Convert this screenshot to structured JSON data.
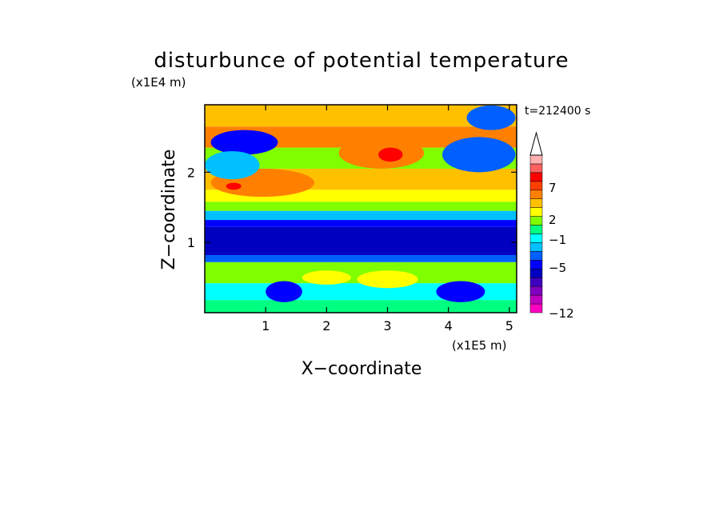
{
  "chart_data": {
    "type": "heatmap",
    "title": "disturbunce of potential temperature",
    "xlabel": "X−coordinate",
    "ylabel": "Z−coordinate",
    "x_scale_label": "(x1E5 m)",
    "y_scale_label": "(x1E4 m)",
    "time_label": "t=212400 s",
    "xlim": [
      0,
      5.12
    ],
    "ylim": [
      0,
      2.96
    ],
    "x_ticks": [
      "1",
      "2",
      "3",
      "4",
      "5"
    ],
    "y_ticks": [
      "1",
      "2"
    ],
    "grid": false,
    "legend": {
      "placement": "right",
      "labels": [
        "7",
        "2",
        "−1",
        "−5",
        "−12"
      ],
      "colors_bottom_to_top": [
        "#ff00c0",
        "#c000c0",
        "#8000c0",
        "#4000c0",
        "#0000c0",
        "#0000ff",
        "#0060ff",
        "#00c0ff",
        "#00ffff",
        "#00ff80",
        "#80ff00",
        "#ffff00",
        "#ffc000",
        "#ff8000",
        "#ff4000",
        "#ff0000",
        "#ff6060",
        "#ffb0b0"
      ]
    },
    "bands": [
      {
        "z": [
          0.0,
          0.18
        ],
        "value": -0.5,
        "color": "#00ff80"
      },
      {
        "z": [
          0.18,
          0.42
        ],
        "value": -0.8,
        "color": "#00ffff"
      },
      {
        "z": [
          0.42,
          0.72
        ],
        "value": 0.3,
        "color": "#80ff00"
      },
      {
        "z": [
          0.72,
          0.82
        ],
        "value": -2.5,
        "color": "#0060ff"
      },
      {
        "z": [
          0.82,
          1.22
        ],
        "value": -6.0,
        "color": "#0000c0"
      },
      {
        "z": [
          1.22,
          1.32
        ],
        "value": -3.5,
        "color": "#0000ff"
      },
      {
        "z": [
          1.32,
          1.45
        ],
        "value": -1.5,
        "color": "#00c0ff"
      },
      {
        "z": [
          1.45,
          1.58
        ],
        "value": 0.3,
        "color": "#80ff00"
      },
      {
        "z": [
          1.58,
          1.75
        ],
        "value": 1.5,
        "color": "#ffff00"
      },
      {
        "z": [
          1.75,
          2.05
        ],
        "value": 3.0,
        "color": "#ffc000"
      },
      {
        "z": [
          2.05,
          2.35
        ],
        "value": 1.0,
        "color": "#80ff00"
      },
      {
        "z": [
          2.35,
          2.65
        ],
        "value": 4.0,
        "color": "#ff8000"
      },
      {
        "z": [
          2.65,
          2.96
        ],
        "value": 2.5,
        "color": "#ffc000"
      }
    ],
    "features": [
      {
        "x": [
          0.1,
          1.8
        ],
        "z": [
          1.65,
          2.05
        ],
        "value": 4.0,
        "color": "#ff8000"
      },
      {
        "x": [
          0.35,
          0.6
        ],
        "z": [
          1.75,
          1.85
        ],
        "value": 7.0,
        "color": "#ff0000"
      },
      {
        "x": [
          2.2,
          3.6
        ],
        "z": [
          2.05,
          2.5
        ],
        "value": 4.5,
        "color": "#ff8000"
      },
      {
        "x": [
          2.85,
          3.25
        ],
        "z": [
          2.15,
          2.35
        ],
        "value": 7.0,
        "color": "#ff0000"
      },
      {
        "x": [
          0.1,
          1.2
        ],
        "z": [
          2.25,
          2.6
        ],
        "value": -4.0,
        "color": "#0000ff"
      },
      {
        "x": [
          3.9,
          5.1
        ],
        "z": [
          2.0,
          2.5
        ],
        "value": -3.0,
        "color": "#0060ff"
      },
      {
        "x": [
          2.5,
          3.5
        ],
        "z": [
          0.35,
          0.6
        ],
        "value": 1.5,
        "color": "#ffff00"
      },
      {
        "x": [
          1.6,
          2.4
        ],
        "z": [
          0.4,
          0.6
        ],
        "value": 1.5,
        "color": "#ffff00"
      },
      {
        "x": [
          1.0,
          1.6
        ],
        "z": [
          0.15,
          0.45
        ],
        "value": -4.0,
        "color": "#0000ff"
      },
      {
        "x": [
          3.8,
          4.6
        ],
        "z": [
          0.15,
          0.45
        ],
        "value": -4.0,
        "color": "#0000ff"
      },
      {
        "x": [
          0.0,
          0.9
        ],
        "z": [
          1.9,
          2.3
        ],
        "value": -1.5,
        "color": "#00c0ff"
      },
      {
        "x": [
          4.3,
          5.1
        ],
        "z": [
          2.6,
          2.95
        ],
        "value": -3.0,
        "color": "#0060ff"
      }
    ]
  }
}
